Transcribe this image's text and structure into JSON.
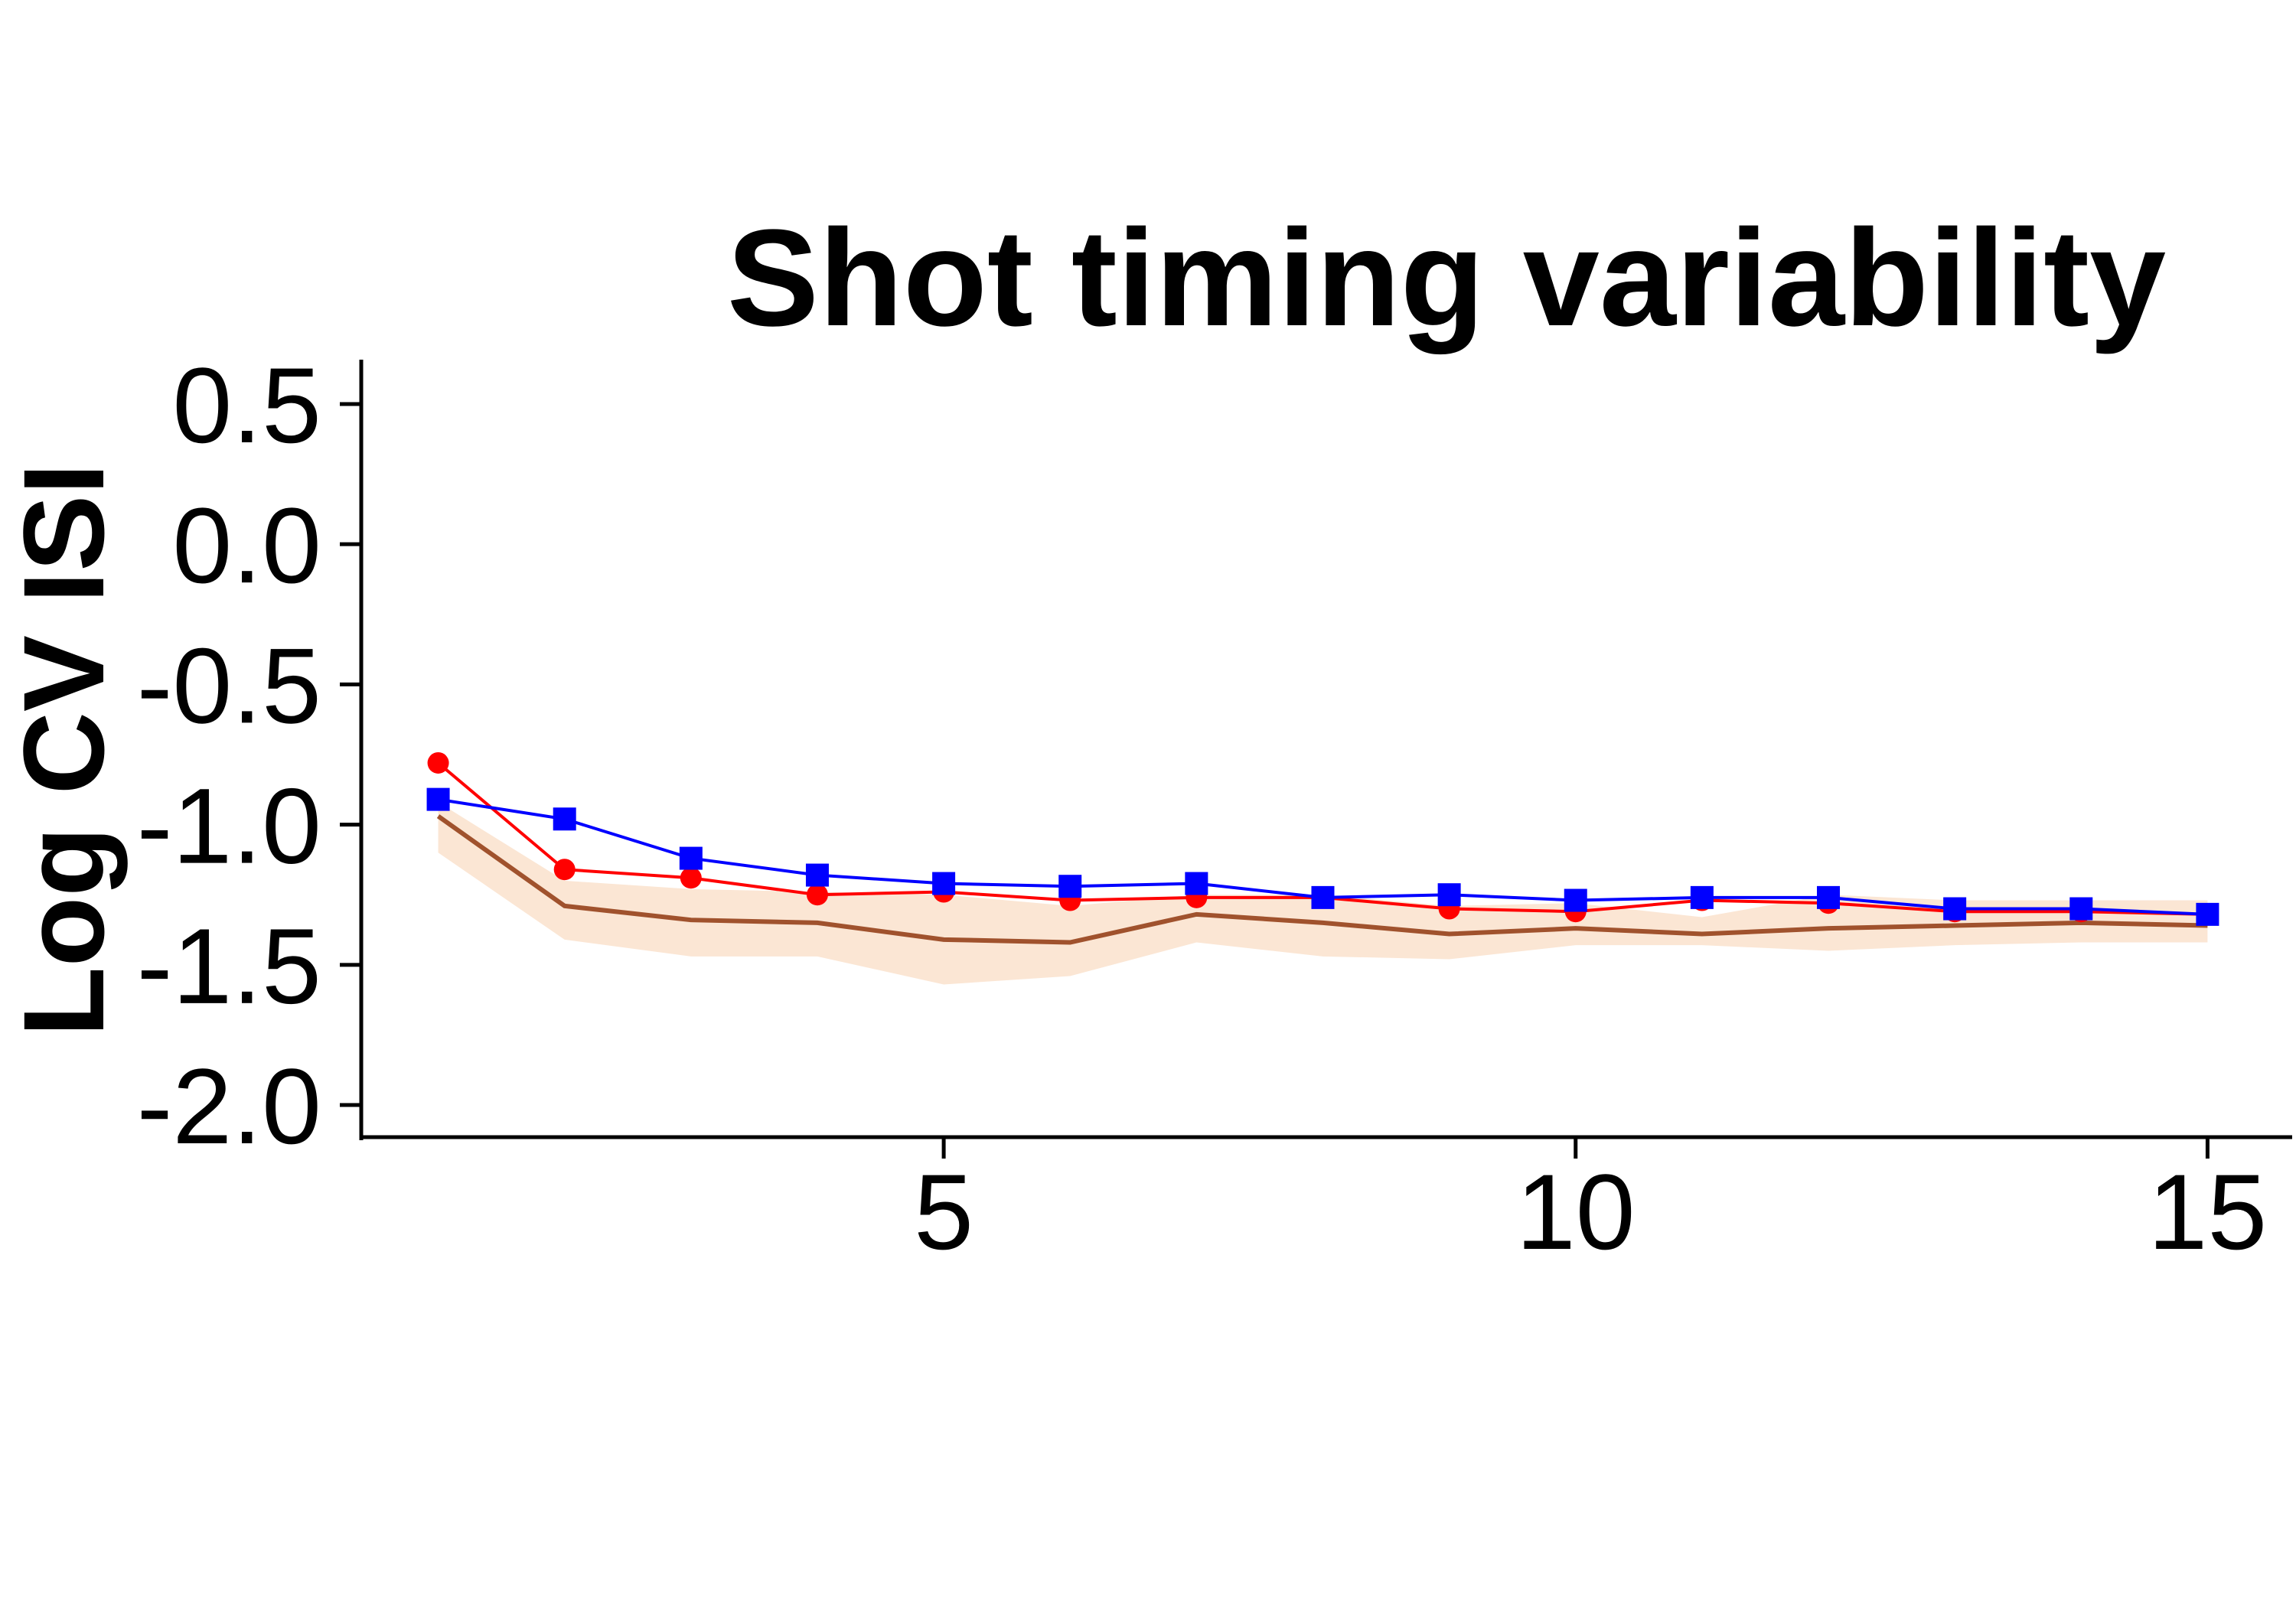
{
  "chart_data": {
    "type": "line",
    "title": "Shot timing variability",
    "xlabel": "",
    "ylabel": "Log CV ISI",
    "xlim": [
      0.5,
      15.7
    ],
    "ylim": [
      -2.12,
      0.62
    ],
    "xticks": [
      5,
      10,
      15
    ],
    "xtick_labels": [
      "5",
      "10",
      "15"
    ],
    "yticks": [
      0.5,
      0.0,
      -0.5,
      -1.0,
      -1.5,
      -2.0
    ],
    "ytick_labels": [
      "0.5",
      "0.0",
      "-0.5",
      "-1.0",
      "-1.5",
      "-2.0"
    ],
    "grid": false,
    "legend": "none",
    "x": [
      1,
      2,
      3,
      4,
      5,
      6,
      7,
      8,
      9,
      10,
      11,
      12,
      13,
      14,
      15
    ],
    "band": {
      "color": "#FBE6D4",
      "line_color": "#A0522D",
      "mean": [
        -0.97,
        -1.29,
        -1.34,
        -1.35,
        -1.41,
        -1.42,
        -1.32,
        -1.35,
        -1.39,
        -1.37,
        -1.39,
        -1.37,
        -1.36,
        -1.35,
        -1.36
      ],
      "lower": [
        -1.1,
        -1.41,
        -1.47,
        -1.47,
        -1.57,
        -1.54,
        -1.42,
        -1.47,
        -1.48,
        -1.43,
        -1.43,
        -1.45,
        -1.43,
        -1.42,
        -1.42
      ],
      "upper": [
        -0.92,
        -1.2,
        -1.23,
        -1.24,
        -1.25,
        -1.29,
        -1.25,
        -1.25,
        -1.29,
        -1.28,
        -1.33,
        -1.25,
        -1.27,
        -1.27,
        -1.27
      ]
    },
    "series": [
      {
        "color": "#FF0000",
        "marker": "circle",
        "values": [
          -0.78,
          -1.16,
          -1.19,
          -1.25,
          -1.24,
          -1.27,
          -1.26,
          -1.26,
          -1.3,
          -1.31,
          -1.27,
          -1.28,
          -1.31,
          -1.31,
          -1.32
        ]
      },
      {
        "color": "#0000FF",
        "marker": "square",
        "values": [
          -0.91,
          -0.98,
          -1.12,
          -1.18,
          -1.21,
          -1.22,
          -1.21,
          -1.26,
          -1.25,
          -1.27,
          -1.26,
          -1.26,
          -1.3,
          -1.3,
          -1.32
        ]
      }
    ]
  }
}
